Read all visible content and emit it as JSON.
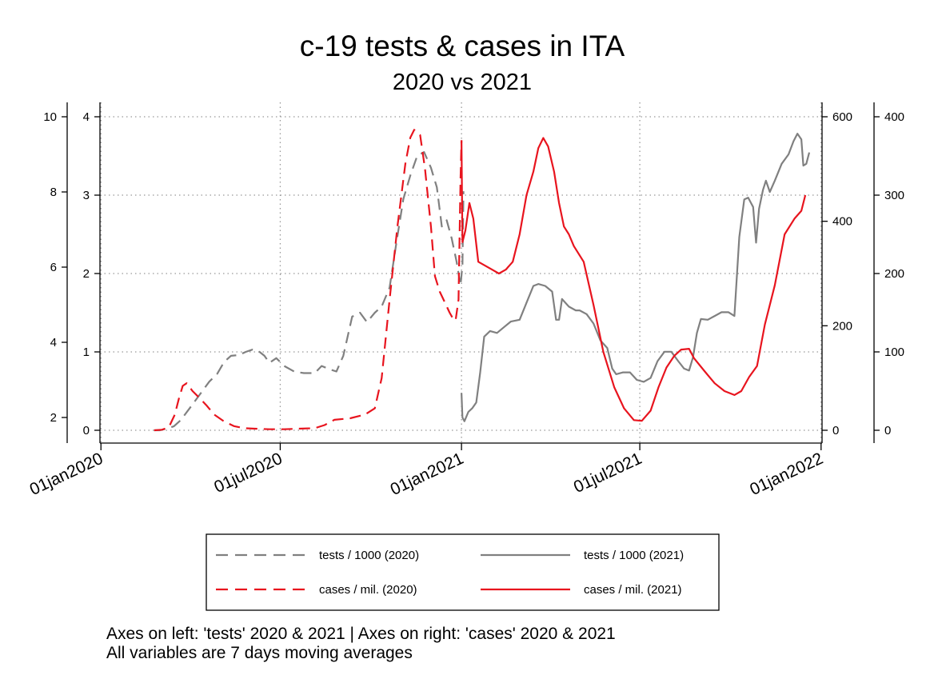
{
  "chart_data": {
    "type": "line",
    "title": "c-19 tests & cases in ITA",
    "subtitle": "2020 vs 2021",
    "notes": [
      "Axes on left: 'tests' 2020 & 2021 | Axes on right: 'cases' 2020 & 2021",
      "All variables are 7 days moving averages"
    ],
    "x_axis": {
      "type": "date",
      "range": [
        "2019-12-31",
        "2022-01-02"
      ],
      "ticks": [
        {
          "date": "2020-01-01",
          "label": "01jan2020"
        },
        {
          "date": "2020-07-01",
          "label": "01jul2020"
        },
        {
          "date": "2021-01-01",
          "label": "01jan2021"
        },
        {
          "date": "2021-07-01",
          "label": "01jul2021"
        },
        {
          "date": "2022-01-01",
          "label": "01jan2022"
        }
      ],
      "grid": true
    },
    "y_axes": {
      "tests_2021": {
        "side": "left-outer",
        "range": [
          1.55,
          10.2
        ],
        "ticks": [
          2,
          4,
          6,
          8,
          10
        ],
        "labels": [
          "2",
          "4",
          "6",
          "8",
          "10"
        ],
        "grid": false
      },
      "tests_2020": {
        "side": "left-inner",
        "range": [
          -0.2,
          4.0
        ],
        "ticks": [
          0,
          1,
          2,
          3,
          4
        ],
        "labels": [
          "0",
          "1",
          "2",
          "3",
          "4"
        ],
        "grid": true
      },
      "cases_2020": {
        "side": "right-inner",
        "range": [
          -30,
          600
        ],
        "ticks": [
          0,
          200,
          400,
          600
        ],
        "labels": [
          "0",
          "200",
          "400",
          "600"
        ],
        "grid": false
      },
      "cases_2021": {
        "side": "right-outer",
        "range": [
          -20,
          400
        ],
        "ticks": [
          0,
          100,
          200,
          300,
          400
        ],
        "labels": [
          "0",
          "100",
          "200",
          "300",
          "400"
        ],
        "grid": false
      }
    },
    "legend": {
      "placement": "bottom",
      "entries": [
        {
          "label": "tests / 1000 (2020)",
          "series": "tests_2020"
        },
        {
          "label": "tests / 1000 (2021)",
          "series": "tests_2021"
        },
        {
          "label": "cases / mil. (2020)",
          "series": "cases_2020"
        },
        {
          "label": "cases / mil. (2021)",
          "series": "cases_2021"
        }
      ]
    },
    "series": [
      {
        "id": "tests_2020",
        "axis": "tests_2020",
        "color": "#808080",
        "dash": true,
        "points": [
          [
            "2020-02-24",
            0.0
          ],
          [
            "2020-03-01",
            0.0
          ],
          [
            "2020-03-07",
            0.02
          ],
          [
            "2020-03-15",
            0.05
          ],
          [
            "2020-03-22",
            0.13
          ],
          [
            "2020-03-31",
            0.28
          ],
          [
            "2020-04-10",
            0.45
          ],
          [
            "2020-04-20",
            0.62
          ],
          [
            "2020-04-28",
            0.72
          ],
          [
            "2020-05-05",
            0.87
          ],
          [
            "2020-05-12",
            0.95
          ],
          [
            "2020-05-20",
            0.96
          ],
          [
            "2020-05-27",
            1.0
          ],
          [
            "2020-06-03",
            1.03
          ],
          [
            "2020-06-10",
            1.0
          ],
          [
            "2020-06-15",
            0.95
          ],
          [
            "2020-06-20",
            0.86
          ],
          [
            "2020-06-27",
            0.92
          ],
          [
            "2020-07-05",
            0.82
          ],
          [
            "2020-07-15",
            0.75
          ],
          [
            "2020-07-25",
            0.73
          ],
          [
            "2020-08-05",
            0.73
          ],
          [
            "2020-08-12",
            0.82
          ],
          [
            "2020-08-20",
            0.78
          ],
          [
            "2020-08-27",
            0.75
          ],
          [
            "2020-09-03",
            0.95
          ],
          [
            "2020-09-12",
            1.45
          ],
          [
            "2020-09-20",
            1.5
          ],
          [
            "2020-09-27",
            1.38
          ],
          [
            "2020-10-05",
            1.5
          ],
          [
            "2020-10-12",
            1.58
          ],
          [
            "2020-10-20",
            1.82
          ],
          [
            "2020-10-27",
            2.4
          ],
          [
            "2020-11-03",
            2.95
          ],
          [
            "2020-11-10",
            3.25
          ],
          [
            "2020-11-17",
            3.5
          ],
          [
            "2020-11-24",
            3.55
          ],
          [
            "2020-12-01",
            3.35
          ],
          [
            "2020-12-07",
            3.1
          ],
          [
            "2020-12-12",
            2.6
          ],
          [
            "2020-12-17",
            2.68
          ],
          [
            "2020-12-22",
            2.45
          ],
          [
            "2020-12-27",
            2.15
          ],
          [
            "2020-12-31",
            1.85
          ],
          [
            "2021-01-02",
            2.1
          ],
          [
            "2021-01-03",
            3.05
          ]
        ]
      },
      {
        "id": "tests_2021",
        "axis": "tests_2021",
        "color": "#808080",
        "dash": false,
        "points": [
          [
            "2021-01-01",
            2.65
          ],
          [
            "2021-01-02",
            2.0
          ],
          [
            "2021-01-04",
            1.9
          ],
          [
            "2021-01-08",
            2.15
          ],
          [
            "2021-01-12",
            2.25
          ],
          [
            "2021-01-16",
            2.4
          ],
          [
            "2021-01-20",
            3.2
          ],
          [
            "2021-01-24",
            4.15
          ],
          [
            "2021-01-30",
            4.3
          ],
          [
            "2021-02-06",
            4.25
          ],
          [
            "2021-02-13",
            4.4
          ],
          [
            "2021-02-20",
            4.55
          ],
          [
            "2021-03-01",
            4.6
          ],
          [
            "2021-03-08",
            5.05
          ],
          [
            "2021-03-15",
            5.5
          ],
          [
            "2021-03-20",
            5.55
          ],
          [
            "2021-03-27",
            5.5
          ],
          [
            "2021-04-03",
            5.35
          ],
          [
            "2021-04-07",
            4.6
          ],
          [
            "2021-04-10",
            4.6
          ],
          [
            "2021-04-13",
            5.15
          ],
          [
            "2021-04-20",
            4.95
          ],
          [
            "2021-04-27",
            4.85
          ],
          [
            "2021-05-01",
            4.85
          ],
          [
            "2021-05-08",
            4.75
          ],
          [
            "2021-05-15",
            4.5
          ],
          [
            "2021-05-22",
            4.05
          ],
          [
            "2021-05-29",
            3.85
          ],
          [
            "2021-06-03",
            3.3
          ],
          [
            "2021-06-07",
            3.15
          ],
          [
            "2021-06-14",
            3.2
          ],
          [
            "2021-06-21",
            3.2
          ],
          [
            "2021-06-28",
            3.0
          ],
          [
            "2021-07-05",
            2.95
          ],
          [
            "2021-07-12",
            3.05
          ],
          [
            "2021-07-19",
            3.5
          ],
          [
            "2021-07-26",
            3.75
          ],
          [
            "2021-08-02",
            3.75
          ],
          [
            "2021-08-09",
            3.5
          ],
          [
            "2021-08-15",
            3.3
          ],
          [
            "2021-08-20",
            3.25
          ],
          [
            "2021-08-24",
            3.6
          ],
          [
            "2021-08-28",
            4.25
          ],
          [
            "2021-09-01",
            4.62
          ],
          [
            "2021-09-08",
            4.6
          ],
          [
            "2021-09-15",
            4.7
          ],
          [
            "2021-09-22",
            4.8
          ],
          [
            "2021-09-29",
            4.8
          ],
          [
            "2021-10-05",
            4.7
          ],
          [
            "2021-10-10",
            6.8
          ],
          [
            "2021-10-15",
            7.8
          ],
          [
            "2021-10-19",
            7.85
          ],
          [
            "2021-10-24",
            7.6
          ],
          [
            "2021-10-27",
            6.65
          ],
          [
            "2021-10-30",
            7.55
          ],
          [
            "2021-11-03",
            8.05
          ],
          [
            "2021-11-06",
            8.3
          ],
          [
            "2021-11-10",
            8.0
          ],
          [
            "2021-11-15",
            8.3
          ],
          [
            "2021-11-22",
            8.75
          ],
          [
            "2021-11-29",
            9.0
          ],
          [
            "2021-12-04",
            9.35
          ],
          [
            "2021-12-08",
            9.55
          ],
          [
            "2021-12-12",
            9.4
          ],
          [
            "2021-12-14",
            8.7
          ],
          [
            "2021-12-17",
            8.75
          ],
          [
            "2021-12-20",
            9.05
          ]
        ]
      },
      {
        "id": "cases_2020",
        "axis": "cases_2020",
        "color": "#e8141e",
        "dash": true,
        "points": [
          [
            "2020-02-24",
            0
          ],
          [
            "2020-03-03",
            1
          ],
          [
            "2020-03-10",
            6
          ],
          [
            "2020-03-16",
            30
          ],
          [
            "2020-03-20",
            60
          ],
          [
            "2020-03-24",
            85
          ],
          [
            "2020-03-28",
            90
          ],
          [
            "2020-04-03",
            75
          ],
          [
            "2020-04-10",
            62
          ],
          [
            "2020-04-17",
            48
          ],
          [
            "2020-04-25",
            30
          ],
          [
            "2020-05-05",
            17
          ],
          [
            "2020-05-15",
            8
          ],
          [
            "2020-05-25",
            4
          ],
          [
            "2020-06-05",
            3
          ],
          [
            "2020-06-20",
            2
          ],
          [
            "2020-07-05",
            2
          ],
          [
            "2020-07-20",
            3
          ],
          [
            "2020-08-05",
            4
          ],
          [
            "2020-08-15",
            10
          ],
          [
            "2020-08-25",
            20
          ],
          [
            "2020-09-10",
            23
          ],
          [
            "2020-09-25",
            30
          ],
          [
            "2020-10-05",
            42
          ],
          [
            "2020-10-12",
            100
          ],
          [
            "2020-10-20",
            250
          ],
          [
            "2020-10-28",
            390
          ],
          [
            "2020-11-05",
            510
          ],
          [
            "2020-11-10",
            560
          ],
          [
            "2020-11-14",
            575
          ],
          [
            "2020-11-20",
            565
          ],
          [
            "2020-11-25",
            500
          ],
          [
            "2020-12-01",
            390
          ],
          [
            "2020-12-05",
            295
          ],
          [
            "2020-12-10",
            265
          ],
          [
            "2020-12-15",
            245
          ],
          [
            "2020-12-20",
            225
          ],
          [
            "2020-12-23",
            215
          ],
          [
            "2020-12-26",
            210
          ],
          [
            "2020-12-29",
            250
          ],
          [
            "2020-12-31",
            480
          ],
          [
            "2021-01-01",
            555
          ]
        ]
      },
      {
        "id": "cases_2021",
        "axis": "cases_2021",
        "color": "#e8141e",
        "dash": false,
        "points": [
          [
            "2021-01-01",
            370
          ],
          [
            "2021-01-02",
            240
          ],
          [
            "2021-01-05",
            255
          ],
          [
            "2021-01-09",
            290
          ],
          [
            "2021-01-13",
            270
          ],
          [
            "2021-01-18",
            215
          ],
          [
            "2021-01-25",
            210
          ],
          [
            "2021-02-01",
            205
          ],
          [
            "2021-02-08",
            200
          ],
          [
            "2021-02-15",
            205
          ],
          [
            "2021-02-22",
            215
          ],
          [
            "2021-03-01",
            250
          ],
          [
            "2021-03-08",
            300
          ],
          [
            "2021-03-15",
            330
          ],
          [
            "2021-03-20",
            360
          ],
          [
            "2021-03-25",
            373
          ],
          [
            "2021-03-30",
            362
          ],
          [
            "2021-04-05",
            330
          ],
          [
            "2021-04-10",
            290
          ],
          [
            "2021-04-15",
            260
          ],
          [
            "2021-04-20",
            250
          ],
          [
            "2021-04-25",
            235
          ],
          [
            "2021-05-05",
            215
          ],
          [
            "2021-05-15",
            160
          ],
          [
            "2021-05-25",
            100
          ],
          [
            "2021-06-05",
            55
          ],
          [
            "2021-06-15",
            28
          ],
          [
            "2021-06-25",
            13
          ],
          [
            "2021-07-03",
            12
          ],
          [
            "2021-07-12",
            25
          ],
          [
            "2021-07-20",
            55
          ],
          [
            "2021-07-28",
            80
          ],
          [
            "2021-08-05",
            95
          ],
          [
            "2021-08-12",
            103
          ],
          [
            "2021-08-20",
            104
          ],
          [
            "2021-08-25",
            92
          ],
          [
            "2021-09-05",
            75
          ],
          [
            "2021-09-15",
            60
          ],
          [
            "2021-09-25",
            50
          ],
          [
            "2021-10-05",
            45
          ],
          [
            "2021-10-12",
            50
          ],
          [
            "2021-10-20",
            68
          ],
          [
            "2021-10-28",
            82
          ],
          [
            "2021-11-05",
            135
          ],
          [
            "2021-11-15",
            185
          ],
          [
            "2021-11-25",
            250
          ],
          [
            "2021-12-05",
            270
          ],
          [
            "2021-12-12",
            280
          ],
          [
            "2021-12-16",
            300
          ]
        ]
      }
    ]
  }
}
